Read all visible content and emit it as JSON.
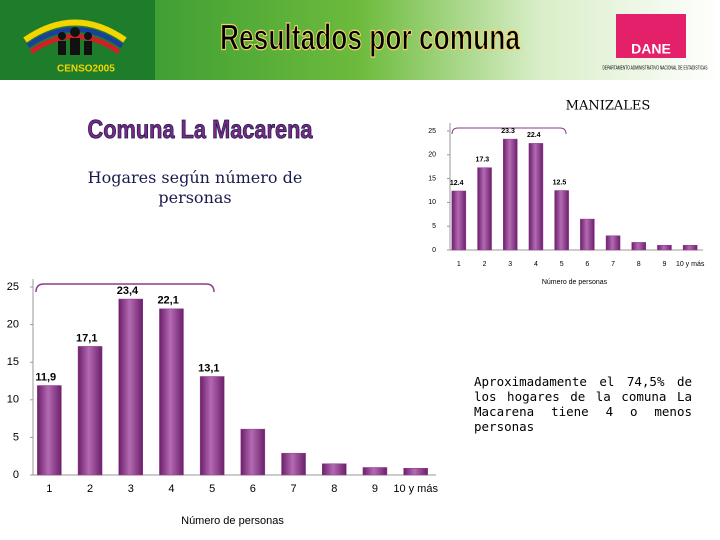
{
  "header": {
    "title": "Resultados por comuna",
    "logo_text": "CENSO2005",
    "agency": "DANE",
    "agency_name": "DEPARTAMENTO ADMINISTRATIVO NACIONAL DE ESTADISTICAS"
  },
  "city": "MANIZALES",
  "comuna": "Comuna La Macarena",
  "subtitle": "Hogares según número de personas",
  "note": "Aproximadamente el 74,5% de los hogares de la comuna La Macarena tiene 4 o menos personas",
  "chart_data": [
    {
      "type": "bar",
      "xlabel": "Número de personas",
      "categories": [
        "1",
        "2",
        "3",
        "4",
        "5",
        "6",
        "7",
        "8",
        "9",
        "10 y más"
      ],
      "values": [
        11.9,
        17.1,
        23.4,
        22.1,
        13.1,
        6.1,
        2.9,
        1.5,
        1.0,
        0.9
      ],
      "value_labels": [
        "11,9",
        "17,1",
        "23,4",
        "22,1",
        "13,1",
        null,
        null,
        null,
        null,
        null
      ],
      "color": "#8e3a8c",
      "ylim": [
        0,
        25
      ],
      "yticks": [
        0,
        5,
        10,
        15,
        20,
        25
      ]
    },
    {
      "type": "bar",
      "xlabel": "Número de personas",
      "categories": [
        "1",
        "2",
        "3",
        "4",
        "5",
        "6",
        "7",
        "8",
        "9",
        "10 y más"
      ],
      "values": [
        12.4,
        17.3,
        23.3,
        22.4,
        12.5,
        6.5,
        3.0,
        1.6,
        1.0,
        1.0
      ],
      "value_labels": [
        "12.4",
        "17.3",
        "23.3",
        "22.4",
        "12.5",
        null,
        null,
        null,
        null,
        null
      ],
      "color": "#8e3a8c",
      "ylim": [
        0,
        25
      ],
      "yticks": [
        0,
        5,
        10,
        15,
        20,
        25
      ]
    }
  ]
}
